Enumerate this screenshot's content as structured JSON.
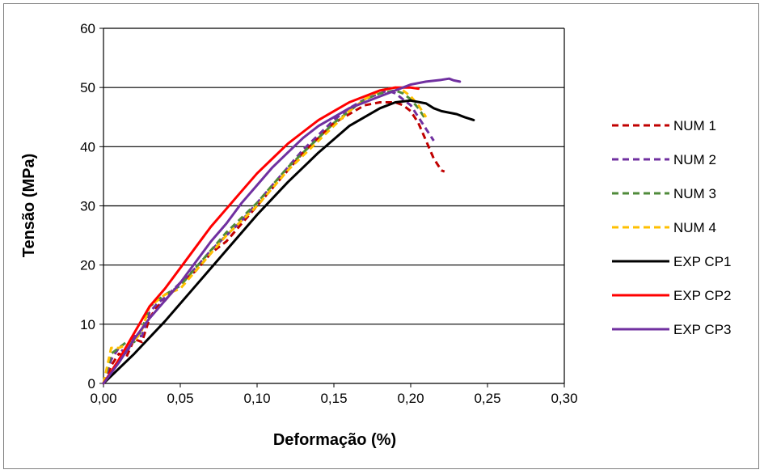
{
  "chart_data": {
    "type": "line",
    "title": "",
    "xlabel": "Deformação (%)",
    "ylabel": "Tensão (MPa)",
    "xlim": [
      0,
      0.3
    ],
    "ylim": [
      0,
      60
    ],
    "x_ticks": [
      "0,00",
      "0,05",
      "0,10",
      "0,15",
      "0,20",
      "0,25",
      "0,30"
    ],
    "y_ticks": [
      "0",
      "10",
      "20",
      "30",
      "40",
      "50",
      "60"
    ],
    "grid": "horizontal",
    "legend_position": "right",
    "series": [
      {
        "name": "NUM 1",
        "color": "#C00000",
        "style": "dashed",
        "points": [
          [
            0,
            0
          ],
          [
            0.005,
            3
          ],
          [
            0.01,
            5
          ],
          [
            0.015,
            4.5
          ],
          [
            0.02,
            7.5
          ],
          [
            0.025,
            7
          ],
          [
            0.03,
            11
          ],
          [
            0.035,
            13
          ],
          [
            0.04,
            14
          ],
          [
            0.05,
            17
          ],
          [
            0.06,
            19
          ],
          [
            0.07,
            22
          ],
          [
            0.08,
            24
          ],
          [
            0.09,
            27
          ],
          [
            0.1,
            30
          ],
          [
            0.11,
            33
          ],
          [
            0.12,
            36
          ],
          [
            0.13,
            39
          ],
          [
            0.14,
            41.5
          ],
          [
            0.15,
            44
          ],
          [
            0.16,
            45.5
          ],
          [
            0.17,
            47
          ],
          [
            0.18,
            47.5
          ],
          [
            0.19,
            47.5
          ],
          [
            0.195,
            47
          ],
          [
            0.2,
            46
          ],
          [
            0.205,
            44
          ],
          [
            0.21,
            41
          ],
          [
            0.215,
            38
          ],
          [
            0.22,
            36
          ],
          [
            0.222,
            35.8
          ]
        ]
      },
      {
        "name": "NUM 2",
        "color": "#7030A0",
        "style": "dashed",
        "points": [
          [
            0,
            0
          ],
          [
            0.005,
            4
          ],
          [
            0.01,
            6
          ],
          [
            0.015,
            5
          ],
          [
            0.02,
            8
          ],
          [
            0.025,
            8
          ],
          [
            0.03,
            12
          ],
          [
            0.035,
            13.5
          ],
          [
            0.04,
            14.5
          ],
          [
            0.05,
            17
          ],
          [
            0.06,
            19.5
          ],
          [
            0.07,
            22.5
          ],
          [
            0.08,
            25
          ],
          [
            0.09,
            27.5
          ],
          [
            0.1,
            30.5
          ],
          [
            0.11,
            33.5
          ],
          [
            0.12,
            36.5
          ],
          [
            0.13,
            39.5
          ],
          [
            0.14,
            42
          ],
          [
            0.15,
            44.5
          ],
          [
            0.16,
            46.5
          ],
          [
            0.17,
            48
          ],
          [
            0.18,
            49
          ],
          [
            0.185,
            49.5
          ],
          [
            0.19,
            49
          ],
          [
            0.195,
            48
          ],
          [
            0.2,
            47
          ],
          [
            0.205,
            45
          ],
          [
            0.21,
            43
          ],
          [
            0.215,
            41
          ]
        ]
      },
      {
        "name": "NUM 3",
        "color": "#4F8A3A",
        "style": "dashed",
        "points": [
          [
            0,
            0
          ],
          [
            0.005,
            5
          ],
          [
            0.01,
            6
          ],
          [
            0.015,
            7
          ],
          [
            0.02,
            7
          ],
          [
            0.025,
            9
          ],
          [
            0.03,
            13
          ],
          [
            0.035,
            14
          ],
          [
            0.04,
            15
          ],
          [
            0.05,
            16.5
          ],
          [
            0.06,
            19.5
          ],
          [
            0.07,
            22.5
          ],
          [
            0.08,
            25.5
          ],
          [
            0.09,
            28
          ],
          [
            0.1,
            30.5
          ],
          [
            0.11,
            33.5
          ],
          [
            0.12,
            36.5
          ],
          [
            0.13,
            39
          ],
          [
            0.14,
            41.5
          ],
          [
            0.15,
            44
          ],
          [
            0.16,
            46
          ],
          [
            0.17,
            48
          ],
          [
            0.18,
            49
          ],
          [
            0.19,
            49.5
          ],
          [
            0.195,
            49
          ],
          [
            0.2,
            48
          ],
          [
            0.205,
            46.5
          ],
          [
            0.21,
            44.5
          ]
        ]
      },
      {
        "name": "NUM 4",
        "color": "#FFC000",
        "style": "dashed",
        "points": [
          [
            0,
            0
          ],
          [
            0.005,
            6
          ],
          [
            0.01,
            6
          ],
          [
            0.015,
            6.5
          ],
          [
            0.02,
            7
          ],
          [
            0.025,
            9
          ],
          [
            0.03,
            13
          ],
          [
            0.035,
            14
          ],
          [
            0.04,
            15
          ],
          [
            0.05,
            16
          ],
          [
            0.06,
            19
          ],
          [
            0.07,
            22
          ],
          [
            0.08,
            25
          ],
          [
            0.09,
            27.5
          ],
          [
            0.1,
            30
          ],
          [
            0.11,
            33
          ],
          [
            0.12,
            36
          ],
          [
            0.13,
            38.5
          ],
          [
            0.14,
            41
          ],
          [
            0.15,
            43.5
          ],
          [
            0.16,
            46
          ],
          [
            0.17,
            48
          ],
          [
            0.18,
            49.5
          ],
          [
            0.19,
            50
          ],
          [
            0.195,
            49.5
          ],
          [
            0.2,
            48.5
          ],
          [
            0.205,
            47
          ],
          [
            0.21,
            45
          ]
        ]
      },
      {
        "name": "EXP CP1",
        "color": "#000000",
        "style": "solid",
        "points": [
          [
            0,
            0
          ],
          [
            0.02,
            5
          ],
          [
            0.04,
            10.5
          ],
          [
            0.06,
            16.5
          ],
          [
            0.08,
            22.5
          ],
          [
            0.1,
            28.5
          ],
          [
            0.12,
            34
          ],
          [
            0.14,
            39
          ],
          [
            0.16,
            43.5
          ],
          [
            0.18,
            46.5
          ],
          [
            0.19,
            47.5
          ],
          [
            0.2,
            47.8
          ],
          [
            0.21,
            47.3
          ],
          [
            0.215,
            46.5
          ],
          [
            0.22,
            46
          ],
          [
            0.23,
            45.5
          ],
          [
            0.235,
            45
          ],
          [
            0.241,
            44.5
          ]
        ]
      },
      {
        "name": "EXP CP2",
        "color": "#FF0000",
        "style": "solid",
        "points": [
          [
            0,
            0
          ],
          [
            0.01,
            4
          ],
          [
            0.02,
            8.5
          ],
          [
            0.03,
            13
          ],
          [
            0.04,
            16
          ],
          [
            0.05,
            19.5
          ],
          [
            0.06,
            23
          ],
          [
            0.07,
            26.5
          ],
          [
            0.08,
            29.5
          ],
          [
            0.09,
            32.5
          ],
          [
            0.1,
            35.5
          ],
          [
            0.11,
            38
          ],
          [
            0.12,
            40.5
          ],
          [
            0.13,
            42.5
          ],
          [
            0.14,
            44.5
          ],
          [
            0.15,
            46
          ],
          [
            0.16,
            47.5
          ],
          [
            0.17,
            48.5
          ],
          [
            0.18,
            49.5
          ],
          [
            0.19,
            50
          ],
          [
            0.2,
            50
          ],
          [
            0.205,
            49.8
          ]
        ]
      },
      {
        "name": "EXP CP3",
        "color": "#7030A0",
        "style": "solid",
        "points": [
          [
            0,
            0
          ],
          [
            0.01,
            3.5
          ],
          [
            0.02,
            7.5
          ],
          [
            0.03,
            11
          ],
          [
            0.04,
            14
          ],
          [
            0.05,
            17
          ],
          [
            0.06,
            20.5
          ],
          [
            0.07,
            24
          ],
          [
            0.08,
            27
          ],
          [
            0.09,
            30.5
          ],
          [
            0.1,
            33.5
          ],
          [
            0.11,
            36.5
          ],
          [
            0.12,
            39
          ],
          [
            0.13,
            41.5
          ],
          [
            0.14,
            43.5
          ],
          [
            0.15,
            45
          ],
          [
            0.16,
            46.5
          ],
          [
            0.17,
            47.5
          ],
          [
            0.18,
            48.5
          ],
          [
            0.19,
            49.5
          ],
          [
            0.2,
            50.5
          ],
          [
            0.21,
            51
          ],
          [
            0.22,
            51.3
          ],
          [
            0.225,
            51.5
          ],
          [
            0.228,
            51.2
          ],
          [
            0.232,
            51
          ]
        ]
      }
    ]
  }
}
